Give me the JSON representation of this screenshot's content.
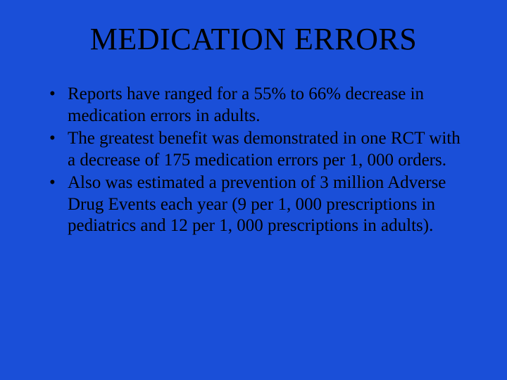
{
  "slide": {
    "background_color": "#1a4fd8",
    "text_color": "#000000",
    "font_family": "Times New Roman",
    "title": {
      "text": "MEDICATION ERRORS",
      "fontsize": 44,
      "align": "center",
      "weight": "normal"
    },
    "bullets": {
      "fontsize": 25,
      "line_height": 1.22,
      "marker": "•",
      "items": [
        "Reports have ranged for a 55% to 66% decrease in medication errors in adults.",
        "The greatest benefit was demonstrated in one RCT with a decrease of 175 medication errors per 1, 000 orders.",
        "Also was estimated a prevention of 3 million Adverse Drug Events each year (9 per 1, 000 prescriptions in pediatrics and 12 per 1, 000 prescriptions in adults)."
      ]
    }
  }
}
